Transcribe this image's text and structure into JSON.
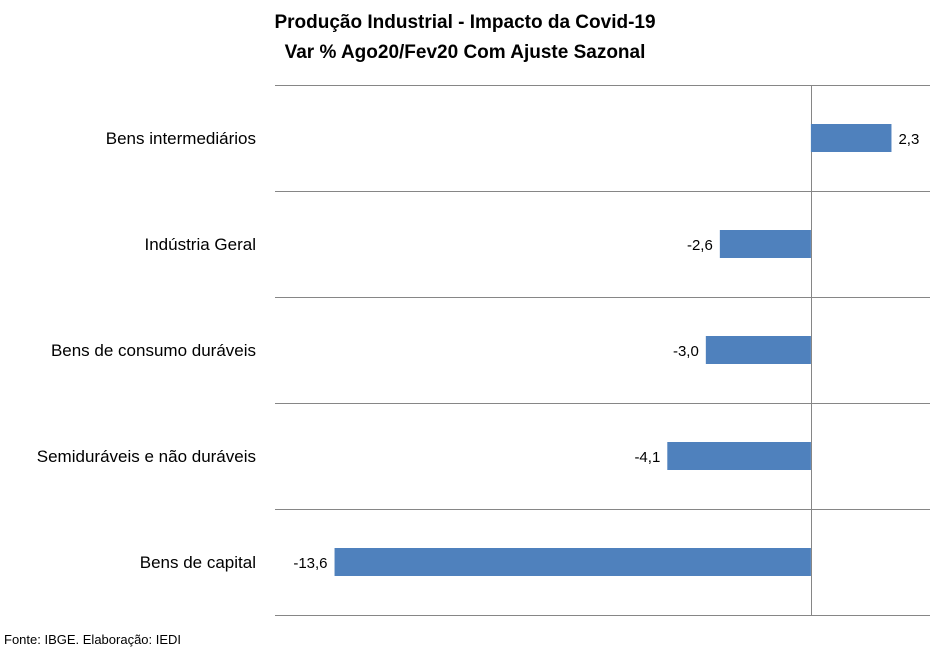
{
  "chart_data": {
    "type": "bar",
    "orientation": "horizontal",
    "title": "Produção Industrial - Impacto da Covid-19",
    "subtitle": "Var % Ago20/Fev20 Com Ajuste Sazonal",
    "categories": [
      "Bens intermediários",
      "Indústria Geral",
      "Bens de consumo duráveis",
      "Semiduráveis e não duráveis",
      "Bens de capital"
    ],
    "values": [
      2.3,
      -2.6,
      -3.0,
      -4.1,
      -13.6
    ],
    "data_labels": [
      "2,3",
      "-2,6",
      "-3,0",
      "-4,1",
      "-13,6"
    ],
    "xlim": [
      -15.3,
      3.4
    ],
    "grid": "horizontal separators between categories",
    "legend": "none",
    "bar_color": "#4f81bd"
  },
  "source": "Fonte: IBGE. Elaboração: IEDI"
}
